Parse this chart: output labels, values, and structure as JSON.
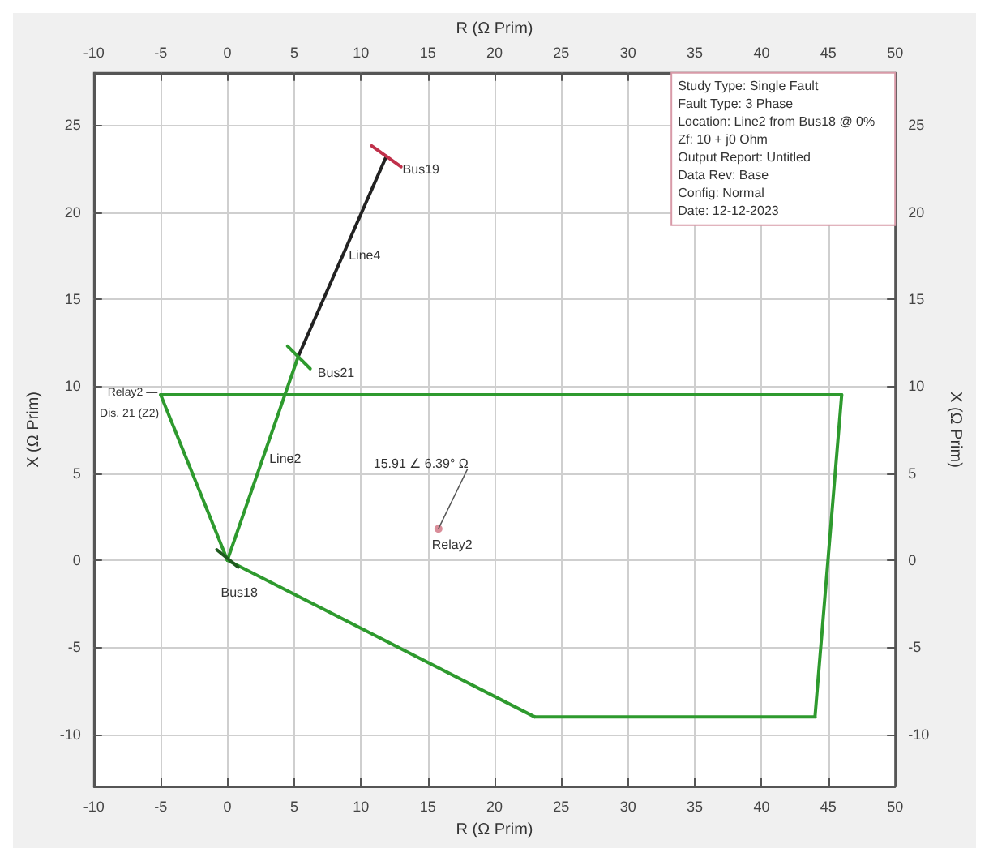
{
  "chart_data": {
    "type": "line",
    "xlabel": "R (Ω Prim)",
    "ylabel": "X (Ω Prim)",
    "x2label": "R (Ω Prim)",
    "y2label": "X (Ω Prim)",
    "xlim": [
      -10,
      50
    ],
    "xticks": [
      -10,
      -5,
      0,
      5,
      10,
      15,
      20,
      25,
      30,
      35,
      40,
      45,
      50
    ],
    "x2lim": [
      -10,
      50
    ],
    "x2ticks": [
      -10,
      -5,
      0,
      5,
      10,
      15,
      20,
      25,
      30,
      35,
      40,
      45,
      50
    ],
    "ylim": [
      -13,
      28
    ],
    "yticks": [
      -10,
      -5,
      0,
      5,
      10,
      15,
      20,
      25
    ],
    "y2lim": [
      -13,
      28
    ],
    "y2ticks": [
      -10,
      -5,
      0,
      5,
      10,
      15,
      20,
      25
    ],
    "grid": true,
    "line_style": "solid",
    "series": [
      {
        "color": "#2e9a2e",
        "x": [
          -5,
          46
        ],
        "values": [
          9.5,
          9.5
        ]
      },
      {
        "color": "#2e9a2e",
        "x": [
          44,
          46
        ],
        "values": [
          -9,
          9.5
        ]
      },
      {
        "color": "#2e9a2e",
        "x": [
          23,
          44
        ],
        "values": [
          -9,
          -9
        ]
      },
      {
        "color": "#2e9a2e",
        "x": [
          0,
          23
        ],
        "values": [
          0,
          -9
        ]
      },
      {
        "color": "#2e9a2e",
        "x": [
          -5,
          0
        ],
        "values": [
          9.5,
          0
        ]
      },
      {
        "color": "#2e9a2e",
        "x": [
          0,
          5.3
        ],
        "values": [
          0,
          11.7
        ]
      },
      {
        "color": "#222222",
        "x": [
          5.3,
          11.9
        ],
        "values": [
          11.7,
          23.2
        ]
      },
      {
        "color": "#c0304a",
        "x": [
          10.8,
          13
        ],
        "values": [
          23.8,
          22.6
        ]
      },
      {
        "color": "#1f5a1f",
        "x": [
          -0.8,
          0.8
        ],
        "values": [
          0.6,
          -0.4
        ]
      },
      {
        "color": "#2e9a2e",
        "x": [
          4.5,
          6.2
        ],
        "values": [
          12.3,
          11
        ]
      },
      {
        "type": "scatter",
        "marker": "circle",
        "color": "#d07080",
        "x": [
          15.8
        ],
        "values": [
          1.8
        ]
      }
    ],
    "annotations": [
      {
        "text": "Bus19",
        "x": 11.9,
        "y": 23.2
      },
      {
        "text": "Line4",
        "x": 8.6,
        "y": 17.5
      },
      {
        "text": "Bus21",
        "x": 5.3,
        "y": 11.7
      },
      {
        "text": "Line2",
        "x": 2.65,
        "y": 5.8
      },
      {
        "text": "Bus18",
        "x": 0,
        "y": 0
      },
      {
        "text": "Relay2",
        "x": 15.8,
        "y": 1.8
      },
      {
        "text": "15.91 ∠ 6.39° Ω",
        "x": 15.8,
        "y": 1.8
      },
      {
        "text": "Relay2 —",
        "x": -5,
        "y": 9.5
      },
      {
        "text": "Dis. 21 (Z2)",
        "x": -5,
        "y": 9.5
      },
      "Study Type: Single Fault",
      "Fault Type: 3 Phase",
      "Location: Line2 from Bus18 @ 0%",
      "Zf: 10 + j0 Ohm",
      "Output Report: Untitled",
      "Data Rev: Base",
      "Config: Normal",
      "Date: 12-12-2023"
    ]
  }
}
